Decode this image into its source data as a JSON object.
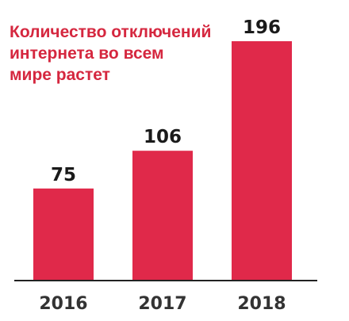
{
  "chart_data": {
    "type": "bar",
    "title_lines": [
      "Количество отключений",
      "интернета во всем",
      "мире растет"
    ],
    "categories": [
      "2016",
      "2017",
      "2018"
    ],
    "values": [
      75,
      106,
      196
    ],
    "ylim": [
      0,
      196
    ],
    "grid": false,
    "legend": "none",
    "colors": {
      "bar": "#e0294a",
      "title": "#d5273f",
      "value_label": "#1a1a1a",
      "tick_label": "#333333",
      "baseline": "#222222"
    }
  }
}
